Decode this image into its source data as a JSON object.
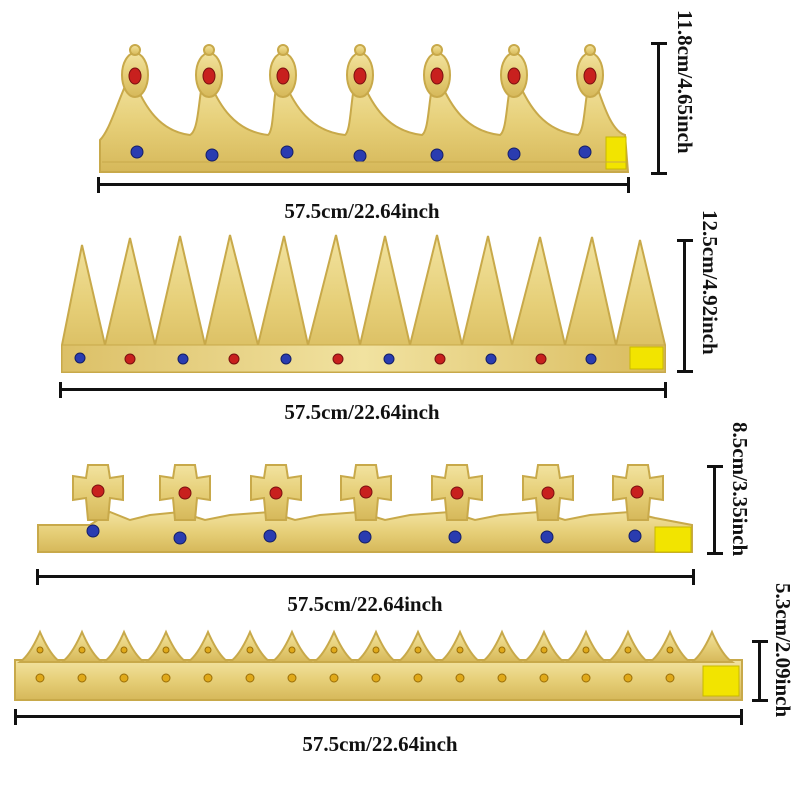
{
  "crowns": [
    {
      "width_label": "57.5cm/22.64inch",
      "height_label": "11.8cm/4.65inch"
    },
    {
      "width_label": "57.5cm/22.64inch",
      "height_label": "12.5cm/4.92inch"
    },
    {
      "width_label": "57.5cm/22.64inch",
      "height_label": "8.5cm/3.35inch"
    },
    {
      "width_label": "57.5cm/22.64inch",
      "height_label": "5.3cm/2.09inch"
    }
  ],
  "colors": {
    "gold": "#e7d17a",
    "gold_dark": "#c8a94a",
    "gold_light": "#f4e6a8",
    "red_gem": "#c8201e",
    "blue_gem": "#2a3cb0",
    "yellow_gem": "#e0a91a",
    "velcro": "#f2e400"
  }
}
